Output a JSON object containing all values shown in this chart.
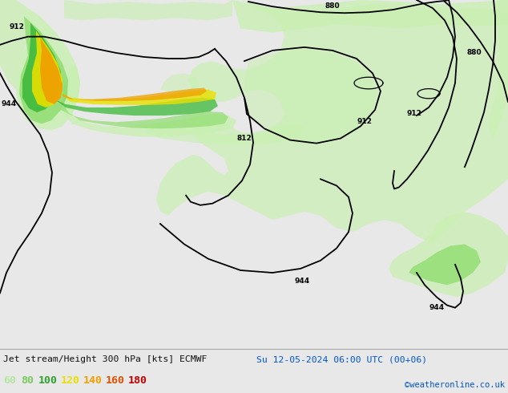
{
  "title_left": "Jet stream/Height 300 hPa [kts] ECMWF",
  "title_right": "Su 12-05-2024 06:00 UTC (00+06)",
  "copyright": "©weatheronline.co.uk",
  "legend_values": [
    "60",
    "80",
    "100",
    "120",
    "140",
    "160",
    "180"
  ],
  "legend_colors": [
    "#b4e6a0",
    "#78cc60",
    "#30a030",
    "#e8e000",
    "#f0a000",
    "#e05000",
    "#c00000"
  ],
  "map_bg": "#e8e8e8",
  "land_gray": "#c8c8c8",
  "bottom_bg": "#f0f0f0",
  "title_color": "#111111",
  "right_color": "#0055cc",
  "copy_color": "#0055cc",
  "figsize": [
    6.34,
    4.9
  ],
  "dpi": 100,
  "lc60": "#c8f0b0",
  "lc80": "#90dd70",
  "lc100": "#3ab838",
  "lc120": "#e8e000",
  "lc140": "#f0a000",
  "lc160": "#e05000",
  "lc180": "#c00000"
}
